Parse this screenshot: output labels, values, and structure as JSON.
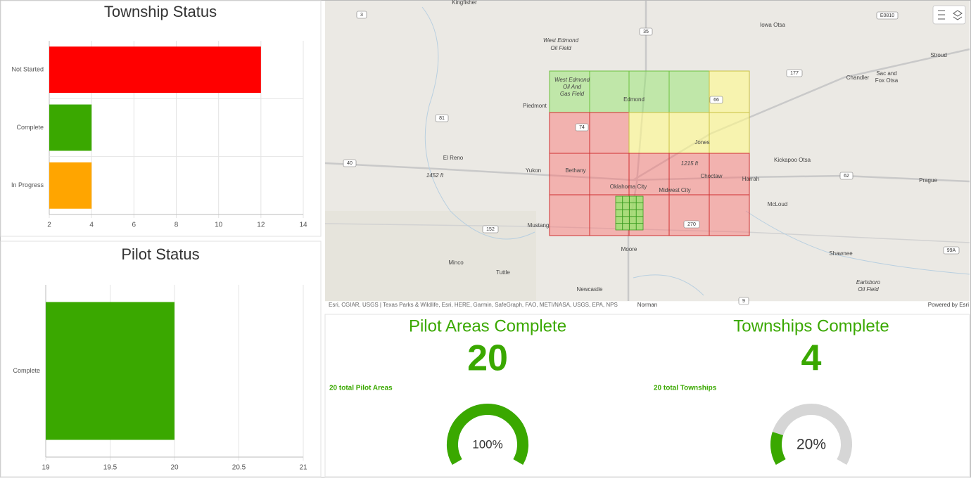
{
  "chart_data": [
    {
      "type": "hbar",
      "title": "Township Status",
      "categories": [
        "Not Started",
        "Complete",
        "In Progress"
      ],
      "values": [
        12,
        4,
        4
      ],
      "colors": [
        "#ff0000",
        "#3aa800",
        "#ffa500"
      ],
      "xlim": [
        2,
        14
      ],
      "xticks": [
        2,
        4,
        6,
        8,
        10,
        12,
        14
      ],
      "grid": true
    },
    {
      "type": "hbar",
      "title": "Pilot Status",
      "categories": [
        "Complete"
      ],
      "values": [
        20
      ],
      "colors": [
        "#3aa800"
      ],
      "xlim": [
        19,
        21
      ],
      "xticks": [
        19,
        19.5,
        20,
        20.5,
        21
      ],
      "grid": true
    }
  ],
  "map": {
    "labels": [
      "Kingfisher",
      "West Edmond",
      "Oil Field",
      "Iowa Otsa",
      "Stroud",
      "Chandler",
      "Sac and",
      "Fox Otsa",
      "Piedmont",
      "Edmond",
      "El Reno",
      "Yukon",
      "Jones",
      "Oklahoma City",
      "Bethany",
      "Midwest City",
      "Choctaw",
      "Harrah",
      "Kickapoo Otsa",
      "Prague",
      "McLoud",
      "Mustang",
      "Shawnee",
      "Moore",
      "Minco",
      "Tuttle",
      "Newcastle",
      "Earlsboro",
      "Oil Field",
      "1452 ft",
      "1215 ft",
      "West Edmond",
      "Oil And",
      "Gas Field",
      "Norman"
    ],
    "shields": [
      "3",
      "35",
      "177",
      "81",
      "40",
      "62",
      "152",
      "99A",
      "66",
      "74",
      "270",
      "E0810",
      "9"
    ],
    "attribution": "Esri, CGIAR, USGS | Texas Parks & Wildlife, Esri, HERE, Garmin, SafeGraph, FAO, METI/NASA, USGS, EPA, NPS",
    "powered_by": "Powered by Esri"
  },
  "indicators": [
    {
      "title": "Pilot Areas Complete",
      "value": 20,
      "subtitle": "20 total Pilot Areas"
    },
    {
      "title": "Townships Complete",
      "value": 4,
      "subtitle": "20 total Townships"
    }
  ],
  "gauges": [
    {
      "value": 100,
      "label": "100%"
    },
    {
      "value": 20,
      "label": "20%"
    }
  ]
}
